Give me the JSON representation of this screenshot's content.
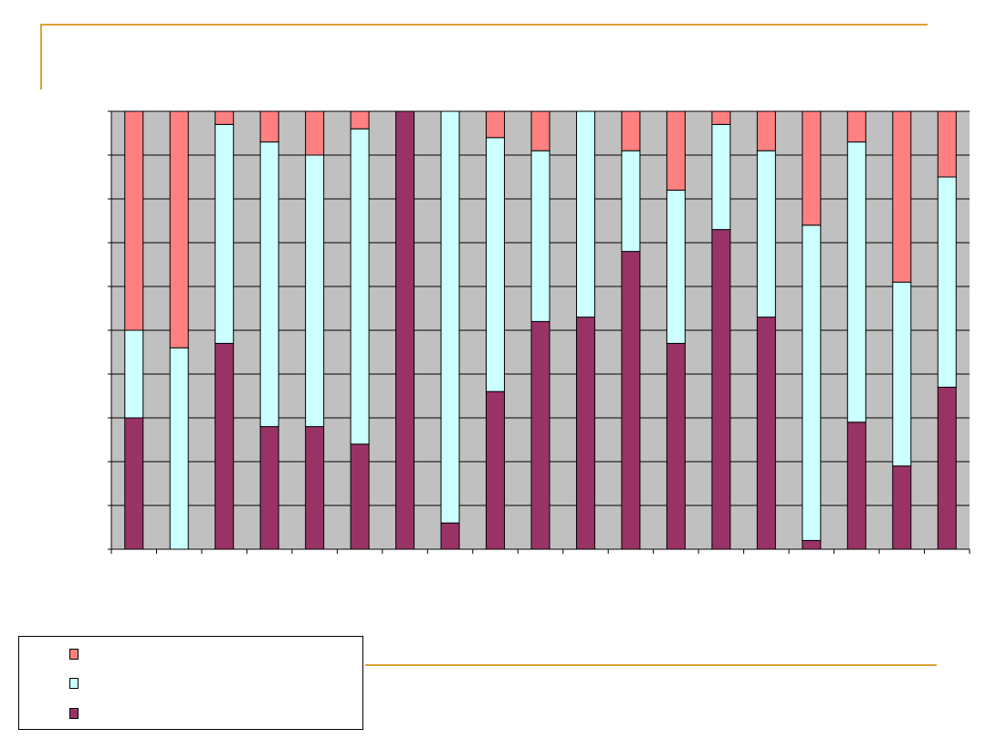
{
  "slide": {
    "accent_color": "#d9a335",
    "background": "#ffffff"
  },
  "chart_data": {
    "type": "bar",
    "stacked": true,
    "normalized": true,
    "title": "",
    "xlabel": "",
    "ylabel": "",
    "ylim": [
      0,
      100
    ],
    "grid": true,
    "plot_background": "#c0c0c0",
    "legend_position": "bottom-left",
    "categories": [
      "",
      "",
      "",
      "",
      "",
      "",
      "",
      "",
      "",
      "",
      "",
      "",
      "",
      "",
      "",
      "",
      "",
      "",
      ""
    ],
    "series": [
      {
        "color": "#993366",
        "values": [
          30,
          0,
          47,
          28,
          28,
          24,
          100,
          6,
          36,
          52,
          53,
          68,
          47,
          73,
          53,
          2,
          29,
          19,
          37
        ]
      },
      {
        "color": "#ccffff",
        "values": [
          20,
          46,
          50,
          65,
          62,
          72,
          0,
          94,
          58,
          39,
          47,
          23,
          35,
          24,
          38,
          72,
          64,
          42,
          48
        ]
      },
      {
        "color": "#ff8080",
        "values": [
          50,
          54,
          3,
          7,
          10,
          4,
          0,
          0,
          6,
          9,
          0,
          9,
          18,
          3,
          9,
          26,
          7,
          39,
          15
        ]
      }
    ]
  },
  "legend": {
    "items": [
      {
        "color": "#ff8080",
        "label": ""
      },
      {
        "color": "#ccffff",
        "label": ""
      },
      {
        "color": "#993366",
        "label": ""
      }
    ]
  }
}
